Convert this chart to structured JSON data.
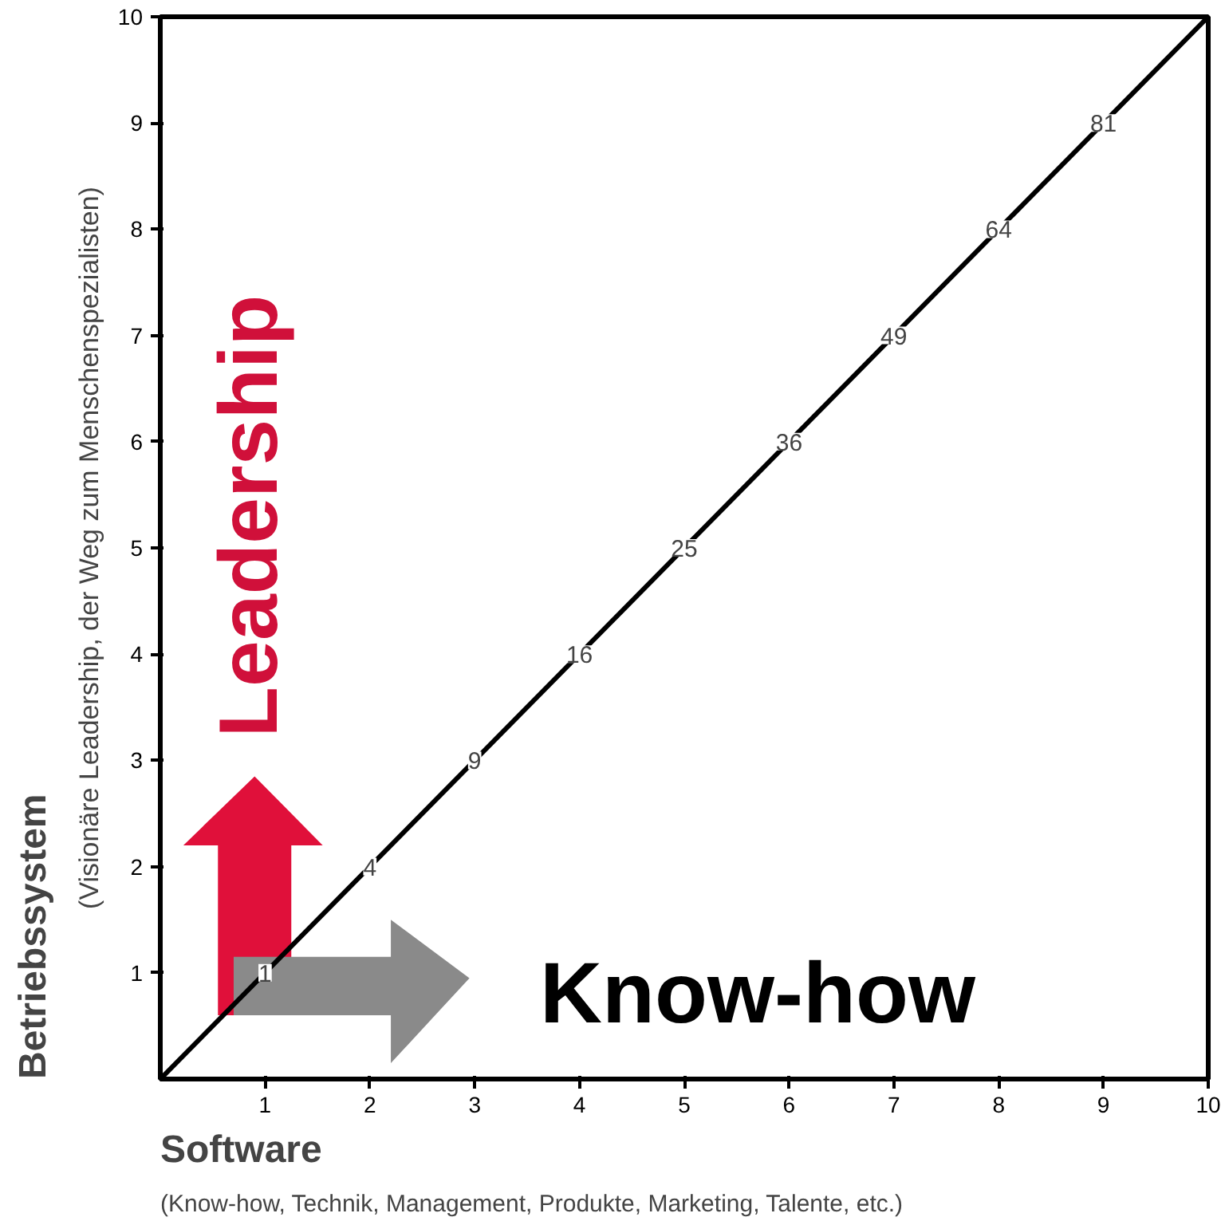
{
  "chart_data": {
    "type": "line",
    "xlabel": "Software",
    "ylabel": "Betriebssystem",
    "x": [
      0,
      10
    ],
    "series": [
      {
        "color": "#000000",
        "values": [
          0,
          10
        ]
      }
    ],
    "xlim": [
      0,
      10
    ],
    "ylim": [
      0,
      10
    ],
    "xticks": [
      1,
      2,
      3,
      4,
      5,
      6,
      7,
      8,
      9,
      10
    ],
    "yticks": [
      1,
      2,
      3,
      4,
      5,
      6,
      7,
      8,
      9,
      10
    ],
    "grid": false,
    "line_style": "solid",
    "annotations": [
      "Leadership",
      "Know-how",
      "(Visionäre Leadership, der Weg zum Menschenspezialisten)",
      "(Know-how, Technik, Management, Produkte, Marketing, Talente, etc.)",
      {
        "text": "1",
        "x": 1,
        "y": 1
      },
      {
        "text": "4",
        "x": 2,
        "y": 2
      },
      {
        "text": "9",
        "x": 3,
        "y": 3
      },
      {
        "text": "16",
        "x": 4,
        "y": 4
      },
      {
        "text": "25",
        "x": 5,
        "y": 5
      },
      {
        "text": "36",
        "x": 6,
        "y": 6
      },
      {
        "text": "49",
        "x": 7,
        "y": 7
      },
      {
        "text": "64",
        "x": 8,
        "y": 8
      },
      {
        "text": "81",
        "x": 9,
        "y": 9
      }
    ]
  }
}
